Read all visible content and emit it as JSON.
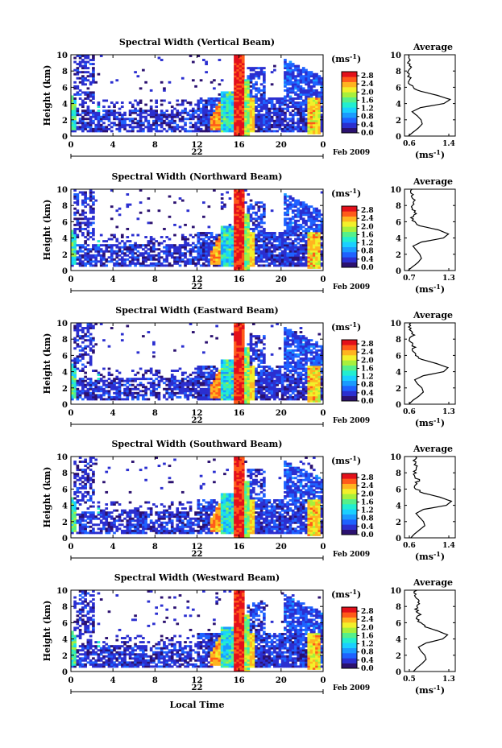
{
  "figure": {
    "xlabel": "Local Time",
    "date_label": "22",
    "month_label": "Feb 2009",
    "colorbar_unit": "(ms",
    "colorbar_unit_sup": "-1",
    "colorbar_unit_close": ")"
  },
  "colors": {
    "colormap": [
      "#2b1170",
      "#2b2fd0",
      "#1e62ff",
      "#1a9bff",
      "#19d0ff",
      "#22eed0",
      "#55f08a",
      "#a7f03c",
      "#f2f02a",
      "#ffb420",
      "#ff5a1a",
      "#e3101a"
    ]
  },
  "chart_data": [
    {
      "type": "heatmap",
      "title": "Spectral Width (Vertical Beam)",
      "ylabel": "Height (km)",
      "xlim": [
        0,
        24
      ],
      "ylim": [
        0,
        10
      ],
      "xticks": [
        "0",
        "4",
        "8",
        "12",
        "16",
        "20",
        "0"
      ],
      "yticks": [
        "0",
        "2",
        "4",
        "6",
        "8",
        "10"
      ],
      "colorbar": {
        "ticks": [
          "0.0",
          "0.4",
          "0.8",
          "1.2",
          "1.6",
          "2.0",
          "2.4",
          "2.8"
        ],
        "range": [
          0.0,
          3.0
        ]
      },
      "profile": {
        "title": "Average",
        "xlim": [
          0.6,
          1.4
        ],
        "xtick_labels": [
          "0.6",
          "1.4"
        ],
        "xlabel": "(ms",
        "xlabel_sup": "-1",
        "xlabel_close": ")",
        "heights": [
          0,
          0.5,
          1,
          1.5,
          2,
          2.5,
          3,
          3.5,
          4,
          4.5,
          5,
          5.5,
          6,
          6.5,
          7,
          7.5,
          8,
          8.5,
          9,
          9.5,
          10
        ],
        "values": [
          0.66,
          0.74,
          0.82,
          0.88,
          0.86,
          0.8,
          0.72,
          0.85,
          1.22,
          1.32,
          1.12,
          0.86,
          0.72,
          0.68,
          0.7,
          0.66,
          0.64,
          0.68,
          0.66,
          0.7,
          0.68
        ]
      }
    },
    {
      "type": "heatmap",
      "title": "Spectral Width (Northward Beam)",
      "ylabel": "Height (km)",
      "xlim": [
        0,
        24
      ],
      "ylim": [
        0,
        10
      ],
      "xticks": [
        "0",
        "4",
        "8",
        "12",
        "16",
        "20",
        "0"
      ],
      "yticks": [
        "0",
        "2",
        "4",
        "6",
        "8",
        "10"
      ],
      "colorbar": {
        "ticks": [
          "0.0",
          "0.4",
          "0.8",
          "1.2",
          "1.6",
          "2.0",
          "2.4",
          "2.8"
        ],
        "range": [
          0.0,
          3.0
        ]
      },
      "profile": {
        "title": "Average",
        "xlim": [
          0.7,
          1.3
        ],
        "xtick_labels": [
          "0.7",
          "1.3"
        ],
        "xlabel": "(ms",
        "xlabel_sup": "-1",
        "xlabel_close": ")",
        "heights": [
          0,
          0.5,
          1,
          1.5,
          2,
          2.5,
          3,
          3.5,
          4,
          4.5,
          5,
          5.5,
          6,
          6.5,
          7,
          7.5,
          8,
          8.5,
          9,
          9.5,
          10
        ],
        "values": [
          0.74,
          0.8,
          0.86,
          0.9,
          0.88,
          0.84,
          0.8,
          0.9,
          1.16,
          1.22,
          1.1,
          0.88,
          0.82,
          0.78,
          0.84,
          0.8,
          0.78,
          0.82,
          0.8,
          0.78,
          0.8
        ]
      }
    },
    {
      "type": "heatmap",
      "title": "Spectral Width (Eastward Beam)",
      "ylabel": "Height (km)",
      "xlim": [
        0,
        24
      ],
      "ylim": [
        0,
        10
      ],
      "xticks": [
        "0",
        "4",
        "8",
        "12",
        "16",
        "20",
        "0"
      ],
      "yticks": [
        "0",
        "2",
        "4",
        "6",
        "8",
        "10"
      ],
      "colorbar": {
        "ticks": [
          "0.0",
          "0.4",
          "0.8",
          "1.2",
          "1.6",
          "2.0",
          "2.4",
          "2.8"
        ],
        "range": [
          0.0,
          3.0
        ]
      },
      "profile": {
        "title": "Average",
        "xlim": [
          0.6,
          1.3
        ],
        "xtick_labels": [
          "0.6",
          "1.3"
        ],
        "xlabel": "(ms",
        "xlabel_sup": "-1",
        "xlabel_close": ")",
        "heights": [
          0,
          0.5,
          1,
          1.5,
          2,
          2.5,
          3,
          3.5,
          4,
          4.5,
          5,
          5.5,
          6,
          6.5,
          7,
          7.5,
          8,
          8.5,
          9,
          9.5,
          10
        ],
        "values": [
          0.66,
          0.72,
          0.8,
          0.86,
          0.84,
          0.78,
          0.74,
          0.86,
          1.14,
          1.2,
          1.04,
          0.84,
          0.76,
          0.7,
          0.74,
          0.7,
          0.68,
          0.72,
          0.7,
          0.66,
          0.68
        ]
      }
    },
    {
      "type": "heatmap",
      "title": "Spectral Width (Southward Beam)",
      "ylabel": "Height (km)",
      "xlim": [
        0,
        24
      ],
      "ylim": [
        0,
        10
      ],
      "xticks": [
        "0",
        "4",
        "8",
        "12",
        "16",
        "20",
        "0"
      ],
      "yticks": [
        "0",
        "2",
        "4",
        "6",
        "8",
        "10"
      ],
      "colorbar": {
        "ticks": [
          "0.0",
          "0.4",
          "0.8",
          "1.2",
          "1.6",
          "2.0",
          "2.4",
          "2.8"
        ],
        "range": [
          0.0,
          3.0
        ]
      },
      "profile": {
        "title": "Average",
        "xlim": [
          0.6,
          1.4
        ],
        "xtick_labels": [
          "0.6",
          "1.4"
        ],
        "xlabel": "(ms",
        "xlabel_sup": "-1",
        "xlabel_close": ")",
        "heights": [
          0,
          0.5,
          1,
          1.5,
          2,
          2.5,
          3,
          3.5,
          4,
          4.5,
          5,
          5.5,
          6,
          6.5,
          7,
          7.5,
          8,
          8.5,
          9,
          9.5,
          10
        ],
        "values": [
          0.7,
          0.76,
          0.84,
          0.92,
          0.9,
          0.84,
          0.78,
          0.9,
          1.26,
          1.34,
          1.16,
          0.9,
          0.8,
          0.76,
          0.82,
          0.78,
          0.76,
          0.8,
          0.78,
          0.76,
          0.78
        ]
      }
    },
    {
      "type": "heatmap",
      "title": "Spectral Width (Westward Beam)",
      "ylabel": "Height (km)",
      "xlim": [
        0,
        24
      ],
      "ylim": [
        0,
        10
      ],
      "xticks": [
        "0",
        "4",
        "8",
        "12",
        "16",
        "20",
        "0"
      ],
      "yticks": [
        "0",
        "2",
        "4",
        "6",
        "8",
        "10"
      ],
      "colorbar": {
        "ticks": [
          "0.0",
          "0.4",
          "0.8",
          "1.2",
          "1.6",
          "2.0",
          "2.4",
          "2.8"
        ],
        "range": [
          0.0,
          3.0
        ]
      },
      "profile": {
        "title": "Average",
        "xlim": [
          0.5,
          1.3
        ],
        "xtick_labels": [
          "0.5",
          "1.3"
        ],
        "xlabel": "(ms",
        "xlabel_sup": "-1",
        "xlabel_close": ")",
        "heights": [
          0,
          0.5,
          1,
          1.5,
          2,
          2.5,
          3,
          3.5,
          4,
          4.5,
          5,
          5.5,
          6,
          6.5,
          7,
          7.5,
          8,
          8.5,
          9,
          9.5,
          10
        ],
        "values": [
          0.64,
          0.7,
          0.78,
          0.84,
          0.82,
          0.76,
          0.72,
          0.84,
          1.1,
          1.18,
          1.02,
          0.82,
          0.74,
          0.7,
          0.74,
          0.7,
          0.68,
          0.72,
          0.7,
          0.66,
          0.68
        ]
      }
    }
  ]
}
